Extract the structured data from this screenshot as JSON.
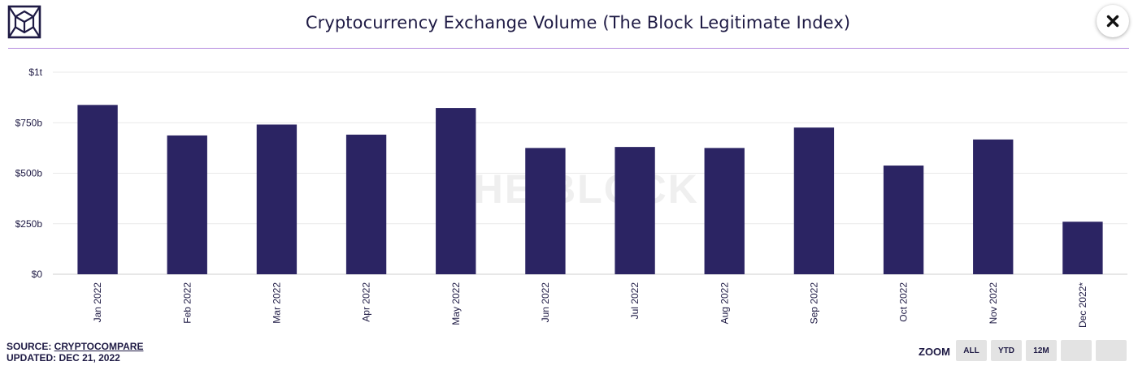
{
  "header": {
    "title": "Cryptocurrency Exchange Volume (The Block Legitimate Index)"
  },
  "watermark": "THE BLOCK",
  "chart_data": {
    "type": "bar",
    "title": "Cryptocurrency Exchange Volume (The Block Legitimate Index)",
    "categories": [
      "Jan 2022",
      "Feb 2022",
      "Mar 2022",
      "Apr 2022",
      "May 2022",
      "Jun 2022",
      "Jul 2022",
      "Aug 2022",
      "Sep 2022",
      "Oct 2022",
      "Nov 2022",
      "Dec 2022*"
    ],
    "values": [
      838,
      687,
      741,
      691,
      823,
      625,
      630,
      625,
      726,
      538,
      667,
      260
    ],
    "value_unit": "billion USD",
    "ylim": [
      0,
      1000
    ],
    "yticks": [
      {
        "value": 0,
        "label": "$0"
      },
      {
        "value": 250,
        "label": "$250b"
      },
      {
        "value": 500,
        "label": "$500b"
      },
      {
        "value": 750,
        "label": "$750b"
      },
      {
        "value": 1000,
        "label": "$1t"
      }
    ],
    "xlabel": "",
    "ylabel": "",
    "grid": true,
    "legend": "none",
    "bar_color": "#2b2463"
  },
  "footer": {
    "source_prefix": "SOURCE: ",
    "source_name": "CRYPTOCOMPARE",
    "updated": "UPDATED: DEC 21, 2022"
  },
  "zoom": {
    "label": "ZOOM",
    "options": [
      "ALL",
      "YTD",
      "12M",
      "",
      ""
    ],
    "selected": "YTD"
  },
  "icons": {
    "logo": "the-block-cube-logo",
    "close": "close-icon"
  },
  "colors": {
    "accent_line": "#b58be0",
    "bar": "#2b2463",
    "text": "#1e1a44",
    "button_bg": "#e3e3e3"
  }
}
